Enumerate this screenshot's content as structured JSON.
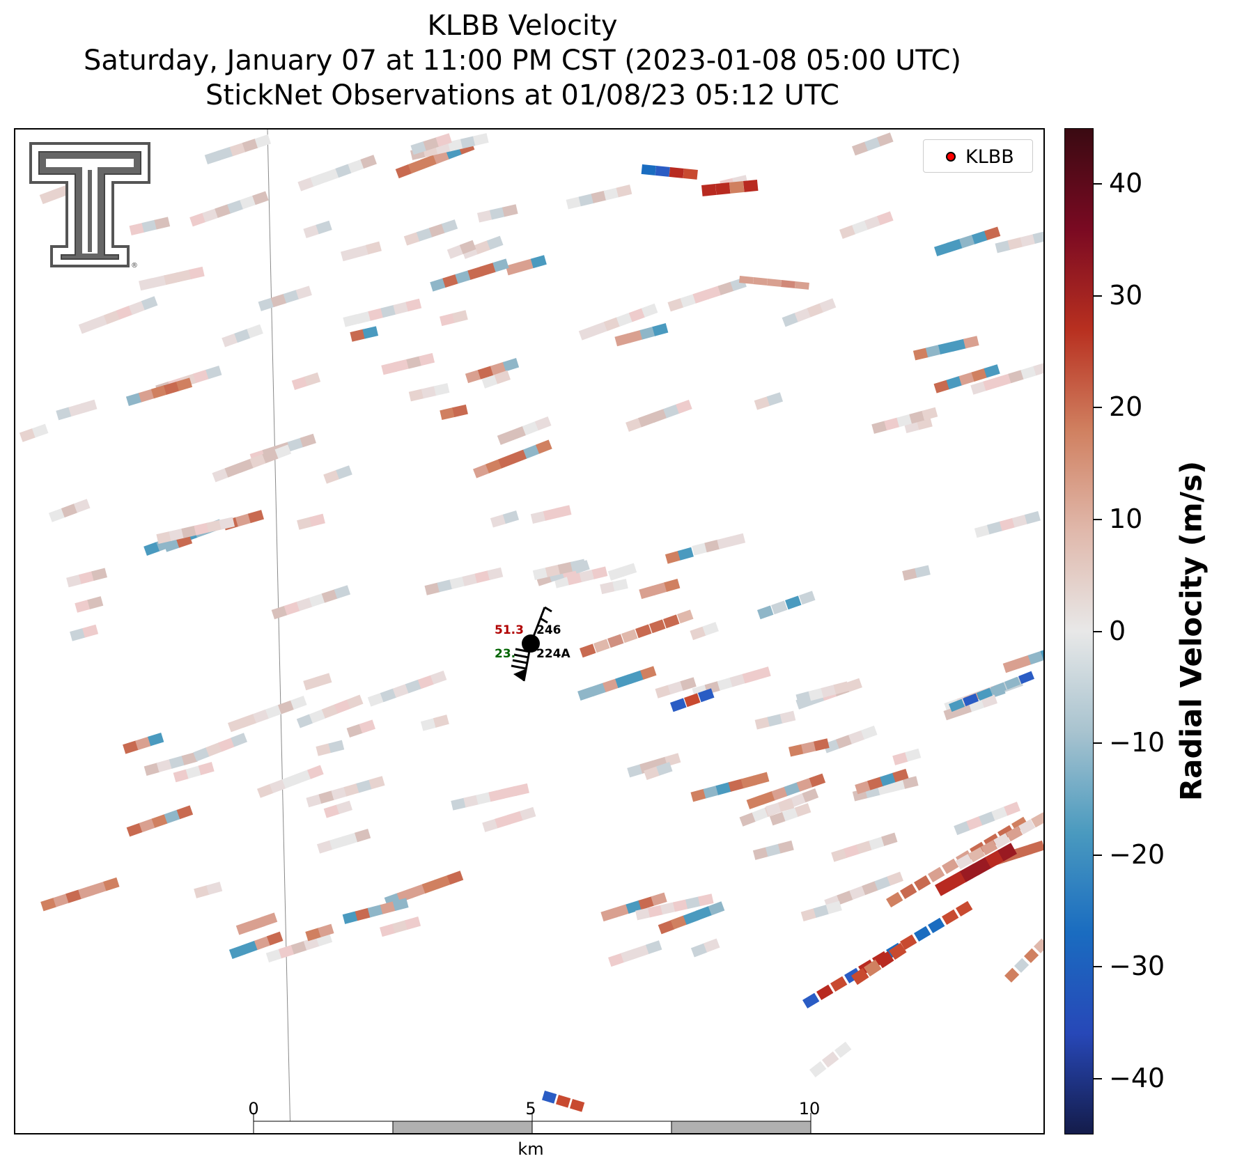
{
  "title": {
    "line1": "KLBB Velocity",
    "line2": "Saturday, January 07 at 11:00 PM CST (2023-01-08 05:00 UTC)",
    "line3": "StickNet Observations at 01/08/23 05:12 UTC"
  },
  "legend": {
    "label": "KLBB",
    "marker_color": "#ff0000"
  },
  "colorbar": {
    "label": "Radial Velocity (m/s)",
    "ticks": [
      "40",
      "30",
      "20",
      "10",
      "0",
      "−10",
      "−20",
      "−30",
      "−40"
    ],
    "range": [
      -45,
      45
    ],
    "colormap": [
      "#141c4a",
      "#2748b8",
      "#1a6cc0",
      "#4a9abf",
      "#a8c3cf",
      "#e8e8e8",
      "#e0b8ab",
      "#d08060",
      "#b83020",
      "#7a0a22",
      "#3a0a12"
    ]
  },
  "station": {
    "temperature": "51.3",
    "dewpoint": "23.",
    "id_top": "246",
    "id_bottom": "224A",
    "temperature_color": "#b00000",
    "dewpoint_color": "#006400"
  },
  "scale_bar": {
    "ticks": [
      "0",
      "5",
      "10"
    ],
    "unit": "km"
  },
  "logo": {
    "name": "texas-tech-double-t-logo",
    "registered_mark": "®"
  }
}
